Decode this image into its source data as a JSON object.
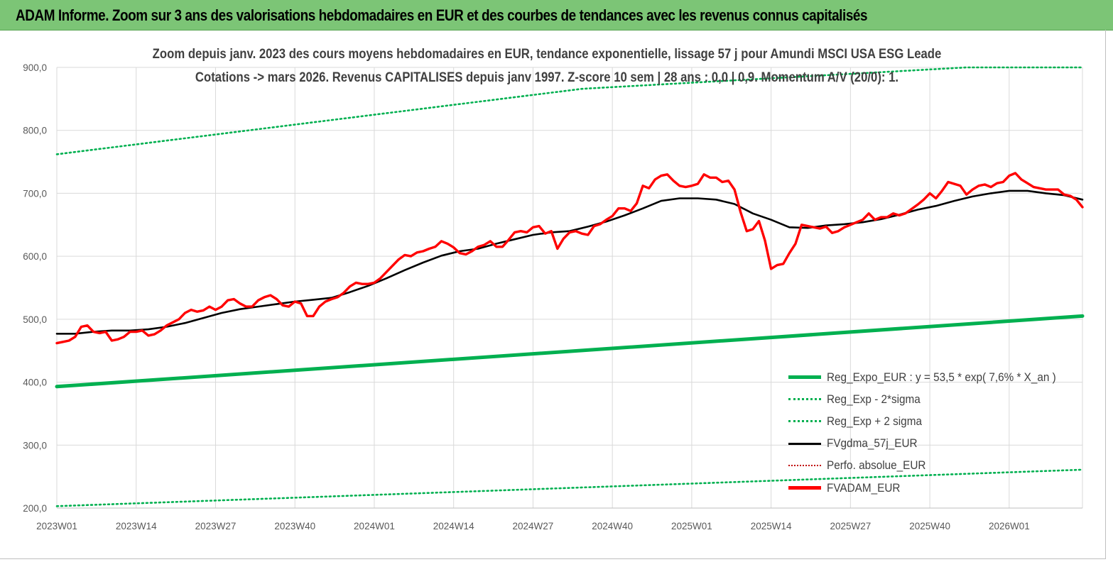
{
  "header": {
    "title": "ADAM Informe. Zoom sur 3 ans des valorisations hebdomadaires en EUR et des courbes de tendances avec les revenus connus capitalisés"
  },
  "chart_data": {
    "type": "line",
    "title": "Zoom depuis janv. 2023 des cours moyens hebdomadaires en EUR, tendance exponentielle, lissage 57 j pour Amundi MSCI USA ESG Leade",
    "subtitle": "Cotations -> mars 2026. Revenus CAPITALISES depuis janv 1997. Z-score 10 sem | 28 ans : 0,0 | 0,9. Momentum A/V (20/0): 1.",
    "ylim": [
      200,
      900
    ],
    "yticks": [
      "200,0",
      "300,0",
      "400,0",
      "500,0",
      "600,0",
      "700,0",
      "800,0",
      "900,0"
    ],
    "xlim": [
      0,
      168
    ],
    "xticks": [
      {
        "label": "2023W01",
        "x": 0
      },
      {
        "label": "2023W14",
        "x": 13
      },
      {
        "label": "2023W27",
        "x": 26
      },
      {
        "label": "2023W40",
        "x": 39
      },
      {
        "label": "2024W01",
        "x": 52
      },
      {
        "label": "2024W14",
        "x": 65
      },
      {
        "label": "2024W27",
        "x": 78
      },
      {
        "label": "2024W40",
        "x": 91
      },
      {
        "label": "2025W01",
        "x": 104
      },
      {
        "label": "2025W14",
        "x": 117
      },
      {
        "label": "2025W27",
        "x": 130
      },
      {
        "label": "2025W40",
        "x": 143
      },
      {
        "label": "2026W01",
        "x": 156
      }
    ],
    "grid": true,
    "legend_position": "bottom-right",
    "colors": {
      "reg_expo": "#00b050",
      "sigma": "#00b050",
      "fvgdma": "#000000",
      "perfo": "#c00000",
      "fvadam": "#ff0000",
      "header_bg": "#7cc576"
    },
    "series": [
      {
        "name": "Reg_Expo_EUR : y = 53,5 * exp( 7,6% *  X_an )",
        "style": "solid-thick",
        "x": [
          0,
          168
        ],
        "values": [
          393,
          505
        ]
      },
      {
        "name": "Reg_Exp - 2*sigma",
        "style": "dotted",
        "x": [
          0,
          168
        ],
        "values": [
          203,
          261
        ]
      },
      {
        "name": "Reg_Exp + 2 sigma",
        "style": "dotted",
        "x": [
          0,
          86,
          149,
          168
        ],
        "values": [
          762,
          866,
          900,
          900
        ]
      },
      {
        "name": "FVgdma_57j_EUR",
        "style": "solid",
        "x": [
          0,
          3,
          6,
          9,
          12,
          15,
          18,
          21,
          24,
          27,
          30,
          33,
          36,
          39,
          42,
          45,
          48,
          51,
          54,
          57,
          60,
          63,
          66,
          69,
          72,
          75,
          78,
          81,
          84,
          87,
          90,
          93,
          96,
          99,
          102,
          105,
          108,
          111,
          114,
          117,
          120,
          123,
          126,
          129,
          132,
          135,
          138,
          141,
          144,
          147,
          150,
          153,
          156,
          159,
          162,
          165,
          168
        ],
        "values": [
          477,
          477,
          480,
          482,
          482,
          484,
          488,
          494,
          502,
          510,
          516,
          520,
          524,
          528,
          531,
          534,
          543,
          553,
          565,
          578,
          590,
          601,
          608,
          612,
          620,
          627,
          634,
          638,
          640,
          647,
          655,
          665,
          676,
          688,
          692,
          692,
          690,
          683,
          668,
          658,
          646,
          645,
          649,
          651,
          654,
          659,
          666,
          674,
          680,
          688,
          695,
          700,
          704,
          704,
          700,
          697,
          690
        ]
      },
      {
        "name": "Perfo. absolue_EUR",
        "style": "dotted",
        "x": [],
        "values": []
      },
      {
        "name": "FVADAM_EUR",
        "style": "solid-thick",
        "x": [
          0,
          1,
          2,
          3,
          4,
          5,
          6,
          7,
          8,
          9,
          10,
          11,
          12,
          13,
          14,
          15,
          16,
          17,
          18,
          19,
          20,
          21,
          22,
          23,
          24,
          25,
          26,
          27,
          28,
          29,
          30,
          31,
          32,
          33,
          34,
          35,
          36,
          37,
          38,
          39,
          40,
          41,
          42,
          43,
          44,
          45,
          46,
          47,
          48,
          49,
          50,
          51,
          52,
          53,
          54,
          55,
          56,
          57,
          58,
          59,
          60,
          61,
          62,
          63,
          64,
          65,
          66,
          67,
          68,
          69,
          70,
          71,
          72,
          73,
          74,
          75,
          76,
          77,
          78,
          79,
          80,
          81,
          82,
          83,
          84,
          85,
          86,
          87,
          88,
          89,
          90,
          91,
          92,
          93,
          94,
          95,
          96,
          97,
          98,
          99,
          100,
          101,
          102,
          103,
          104,
          105,
          106,
          107,
          108,
          109,
          110,
          111,
          112,
          113,
          114,
          115,
          116,
          117,
          118,
          119,
          120,
          121,
          122,
          123,
          124,
          125,
          126,
          127,
          128,
          129,
          130,
          131,
          132,
          133,
          134,
          135,
          136,
          137,
          138,
          139,
          140,
          141,
          142,
          143,
          144,
          145,
          146,
          147,
          148,
          149,
          150,
          151,
          152,
          153,
          154,
          155,
          156,
          157,
          158,
          159,
          160,
          161,
          162,
          163,
          164,
          165,
          166,
          167,
          168
        ],
        "values": [
          462,
          464,
          466,
          472,
          488,
          490,
          480,
          478,
          480,
          466,
          468,
          472,
          480,
          480,
          482,
          474,
          476,
          482,
          490,
          495,
          500,
          510,
          515,
          512,
          514,
          520,
          515,
          520,
          530,
          532,
          525,
          520,
          520,
          530,
          535,
          538,
          532,
          522,
          520,
          528,
          525,
          505,
          505,
          520,
          528,
          532,
          535,
          542,
          552,
          558,
          556,
          556,
          558,
          565,
          575,
          585,
          595,
          602,
          600,
          606,
          608,
          612,
          615,
          624,
          620,
          614,
          605,
          603,
          608,
          615,
          618,
          624,
          615,
          615,
          626,
          638,
          640,
          638,
          646,
          648,
          636,
          640,
          612,
          628,
          638,
          640,
          636,
          634,
          648,
          651,
          658,
          664,
          676,
          676,
          672,
          684,
          712,
          708,
          722,
          728,
          730,
          720,
          712,
          710,
          712,
          715,
          730,
          725,
          725,
          718,
          720,
          706,
          670,
          640,
          643,
          656,
          625,
          580,
          586,
          588,
          605,
          620,
          650,
          648,
          646,
          644,
          647,
          637,
          640,
          646,
          650,
          654,
          658,
          668,
          658,
          662,
          662,
          668,
          665,
          668,
          675,
          682,
          690,
          700,
          692,
          704,
          718,
          715,
          712,
          698,
          706,
          712,
          714,
          710,
          716,
          718,
          728,
          732,
          722,
          716,
          710,
          708,
          706,
          706,
          706,
          698,
          696,
          690,
          678
        ]
      }
    ]
  }
}
